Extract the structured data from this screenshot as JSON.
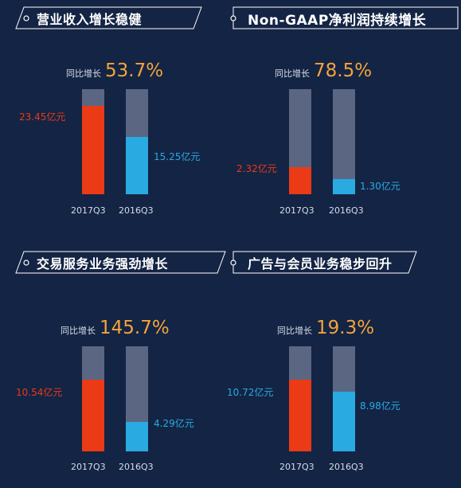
{
  "colors": {
    "background": "#142444",
    "bar_2017": "#eb3a16",
    "bar_2016": "#29abe2",
    "track": "#5b6683",
    "growth": "#f3a43b"
  },
  "chart_data": [
    {
      "type": "bar",
      "title": "营业收入增长稳健",
      "growth_label": "同比增长",
      "growth_value": "53.7%",
      "categories": [
        "2017Q3",
        "2016Q3"
      ],
      "values": [
        23.45,
        15.25
      ],
      "value_labels": [
        "23.45亿元",
        "15.25亿元"
      ],
      "ylim": [
        0,
        28
      ]
    },
    {
      "type": "bar",
      "title": "Non-GAAP净利润持续增长",
      "growth_label": "同比增长",
      "growth_value": "78.5%",
      "categories": [
        "2017Q3",
        "2016Q3"
      ],
      "values": [
        2.32,
        1.3
      ],
      "value_labels": [
        "2.32亿元",
        "1.30亿元"
      ],
      "ylim": [
        0,
        9
      ]
    },
    {
      "type": "bar",
      "title": "交易服务业务强劲增长",
      "growth_label": "同比增长",
      "growth_value": "145.7%",
      "categories": [
        "2017Q3",
        "2016Q3"
      ],
      "values": [
        10.54,
        4.29
      ],
      "value_labels": [
        "10.54亿元",
        "4.29亿元"
      ],
      "ylim": [
        0,
        15.5
      ]
    },
    {
      "type": "bar",
      "title": "广告与会员业务稳步回升",
      "growth_label": "同比增长",
      "growth_value": "19.3%",
      "categories": [
        "2017Q3",
        "2016Q3"
      ],
      "values": [
        10.72,
        8.98
      ],
      "value_labels": [
        "10.72亿元",
        "8.98亿元"
      ],
      "ylim": [
        0,
        15.8
      ]
    }
  ]
}
